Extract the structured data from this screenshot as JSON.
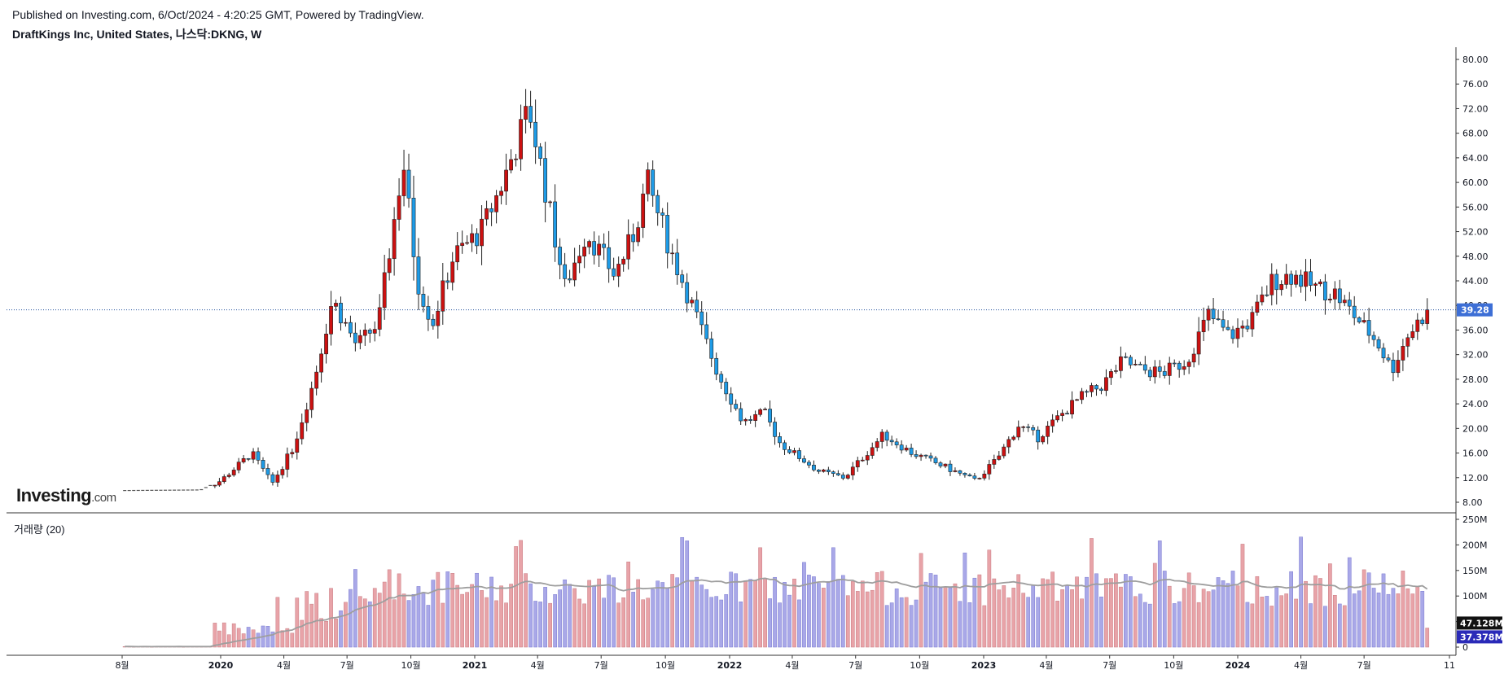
{
  "header": {
    "published": "Published on Investing.com, 6/Oct/2024 - 4:20:25 GMT, Powered by TradingView.",
    "title": "DraftKings Inc, United States, 나스닥:DKNG, W"
  },
  "logo": {
    "main": "Investing",
    "suffix": ".com"
  },
  "volume_panel": {
    "label": "거래량 (20)"
  },
  "colors": {
    "up_candle": "#cc1111",
    "down_candle": "#1e9be6",
    "up_volume": "#e8a3a8",
    "down_volume": "#a9a8e8",
    "volume_ma": "#9e9e9e",
    "price_line": "#1f4e9c",
    "last_price_badge": "#3d6fd6"
  },
  "chart_data": {
    "type": "candlestick",
    "interval": "W",
    "price_axis": {
      "ticks": [
        "80.00",
        "76.00",
        "72.00",
        "68.00",
        "64.00",
        "60.00",
        "56.00",
        "52.00",
        "48.00",
        "44.00",
        "40.00",
        "36.00",
        "32.00",
        "28.00",
        "24.00",
        "20.00",
        "16.00",
        "12.00",
        "8.00"
      ],
      "range": [
        6,
        81
      ]
    },
    "volume_axis": {
      "ticks": [
        "250M",
        "200M",
        "150M",
        "100M",
        "50M",
        "0"
      ],
      "range": [
        0,
        250
      ]
    },
    "x_ticks": [
      {
        "label": "8월",
        "year": false
      },
      {
        "label": "2020",
        "year": true
      },
      {
        "label": "4월",
        "year": false
      },
      {
        "label": "7월",
        "year": false
      },
      {
        "label": "10월",
        "year": false
      },
      {
        "label": "2021",
        "year": true
      },
      {
        "label": "4월",
        "year": false
      },
      {
        "label": "7월",
        "year": false
      },
      {
        "label": "10월",
        "year": false
      },
      {
        "label": "2022",
        "year": true
      },
      {
        "label": "4월",
        "year": false
      },
      {
        "label": "7월",
        "year": false
      },
      {
        "label": "10월",
        "year": false
      },
      {
        "label": "2023",
        "year": true
      },
      {
        "label": "4월",
        "year": false
      },
      {
        "label": "7월",
        "year": false
      },
      {
        "label": "10월",
        "year": false
      },
      {
        "label": "2024",
        "year": true
      },
      {
        "label": "4월",
        "year": false
      },
      {
        "label": "7월",
        "year": false
      },
      {
        "label": "11",
        "year": false
      }
    ],
    "last_price": "39.28",
    "volume_ma_last": "47.128M",
    "volume_last": "37.378M",
    "close_anchors": [
      [
        "2019-08-01",
        9.9
      ],
      [
        "2019-12-01",
        10.0
      ],
      [
        "2020-01-01",
        11.5
      ],
      [
        "2020-02-15",
        16.0
      ],
      [
        "2020-03-15",
        11.0
      ],
      [
        "2020-04-15",
        17.0
      ],
      [
        "2020-05-15",
        28.0
      ],
      [
        "2020-06-10",
        41.0
      ],
      [
        "2020-07-15",
        33.5
      ],
      [
        "2020-08-15",
        37.0
      ],
      [
        "2020-09-20",
        63.5
      ],
      [
        "2020-10-10",
        44.0
      ],
      [
        "2020-11-01",
        37.0
      ],
      [
        "2020-12-01",
        48.0
      ],
      [
        "2021-01-10",
        52.0
      ],
      [
        "2021-02-10",
        60.0
      ],
      [
        "2021-03-20",
        72.0
      ],
      [
        "2021-04-10",
        60.0
      ],
      [
        "2021-05-10",
        43.0
      ],
      [
        "2021-06-10",
        52.0
      ],
      [
        "2021-07-20",
        45.0
      ],
      [
        "2021-08-15",
        51.0
      ],
      [
        "2021-09-05",
        60.0
      ],
      [
        "2021-10-10",
        48.5
      ],
      [
        "2021-11-15",
        38.0
      ],
      [
        "2021-12-15",
        29.0
      ],
      [
        "2022-01-20",
        21.0
      ],
      [
        "2022-02-20",
        22.5
      ],
      [
        "2022-03-15",
        17.5
      ],
      [
        "2022-05-10",
        13.0
      ],
      [
        "2022-06-15",
        12.0
      ],
      [
        "2022-08-10",
        19.0
      ],
      [
        "2022-09-20",
        16.0
      ],
      [
        "2022-11-01",
        14.0
      ],
      [
        "2022-12-20",
        11.5
      ],
      [
        "2023-01-20",
        15.0
      ],
      [
        "2023-02-20",
        20.5
      ],
      [
        "2023-03-20",
        18.5
      ],
      [
        "2023-04-20",
        22.0
      ],
      [
        "2023-05-20",
        25.0
      ],
      [
        "2023-06-20",
        27.0
      ],
      [
        "2023-07-20",
        31.0
      ],
      [
        "2023-08-15",
        29.5
      ],
      [
        "2023-09-15",
        29.0
      ],
      [
        "2023-10-20",
        31.0
      ],
      [
        "2023-11-20",
        38.5
      ],
      [
        "2023-12-20",
        35.0
      ],
      [
        "2024-01-20",
        37.5
      ],
      [
        "2024-02-20",
        44.0
      ],
      [
        "2024-03-20",
        45.0
      ],
      [
        "2024-04-20",
        43.0
      ],
      [
        "2024-05-20",
        42.0
      ],
      [
        "2024-06-20",
        38.0
      ],
      [
        "2024-07-20",
        34.0
      ],
      [
        "2024-08-10",
        29.5
      ],
      [
        "2024-09-01",
        35.0
      ],
      [
        "2024-10-01",
        39.28
      ]
    ]
  }
}
